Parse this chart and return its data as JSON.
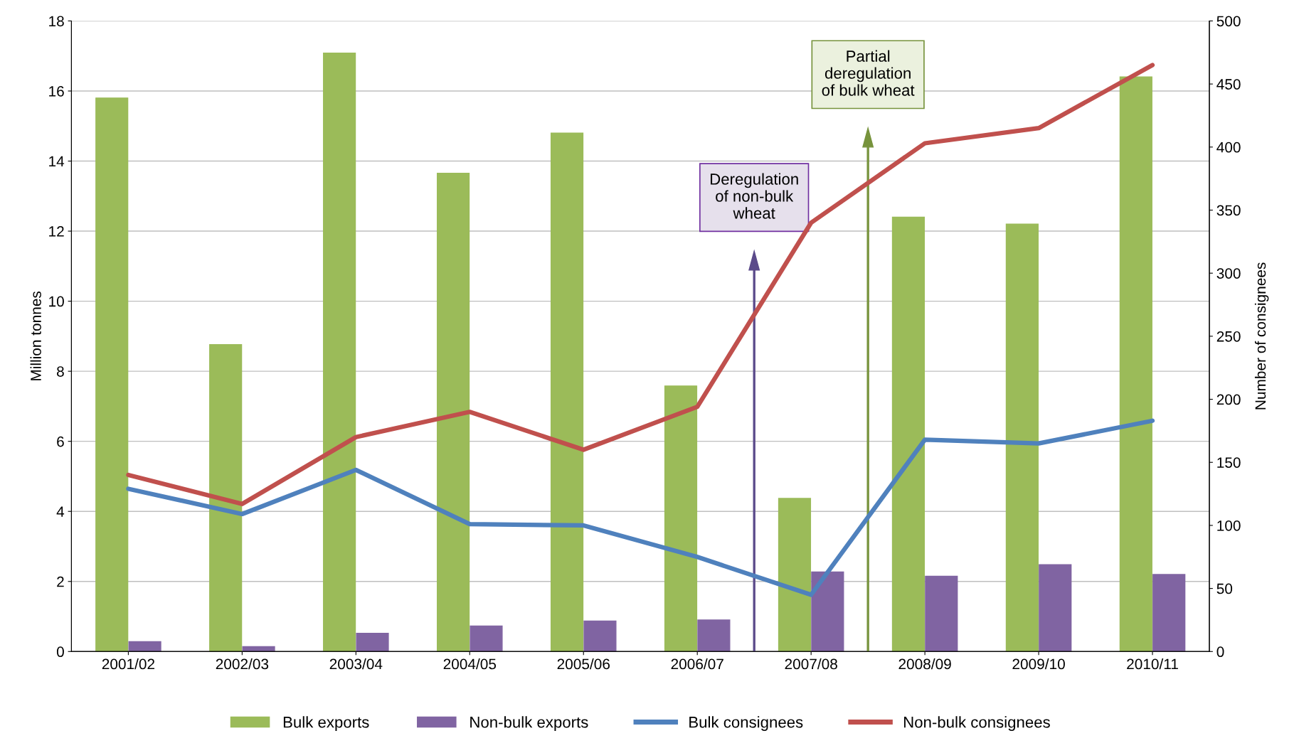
{
  "chart_data": {
    "type": "bar",
    "categories": [
      "2001/02",
      "2002/03",
      "2003/04",
      "2004/05",
      "2005/06",
      "2006/07",
      "2007/08",
      "2008/09",
      "2009/10",
      "2010/11"
    ],
    "series": [
      {
        "name": "Bulk exports",
        "color": "#9bbb59",
        "values": [
          15.8,
          8.76,
          17.08,
          13.65,
          14.8,
          7.58,
          4.37,
          12.4,
          12.2,
          16.4
        ]
      },
      {
        "name": "Non-bulk exports",
        "color": "#8064a2",
        "values": [
          0.28,
          0.14,
          0.52,
          0.73,
          0.87,
          0.9,
          2.27,
          2.15,
          2.48,
          2.2
        ]
      },
      {
        "name": "Bulk consignees",
        "color": "#4f81bd",
        "type": "line",
        "axis": "y2",
        "values": [
          129,
          109,
          144,
          101,
          100,
          75,
          45,
          168,
          165,
          183
        ]
      },
      {
        "name": "Non-bulk consignees",
        "color": "#c0504d",
        "type": "line",
        "axis": "y2",
        "values": [
          140,
          117,
          170,
          190,
          160,
          194,
          340,
          403,
          415,
          465
        ]
      }
    ],
    "ylabel": "Million tonnes",
    "y2label": "Number of consignees",
    "ylim": [
      0,
      18
    ],
    "yticks": [
      0,
      2,
      4,
      6,
      8,
      10,
      12,
      14,
      16,
      18
    ],
    "y2lim": [
      0,
      500
    ],
    "y2ticks": [
      0,
      50,
      100,
      150,
      200,
      250,
      300,
      350,
      400,
      450,
      500
    ],
    "annotations": [
      "Deregulation\nof non-bulk\nwheat",
      "Partial\nderegulation\nof bulk wheat"
    ],
    "grid": "y",
    "legend": "bottom",
    "marker": "none",
    "line_style": "solid"
  }
}
